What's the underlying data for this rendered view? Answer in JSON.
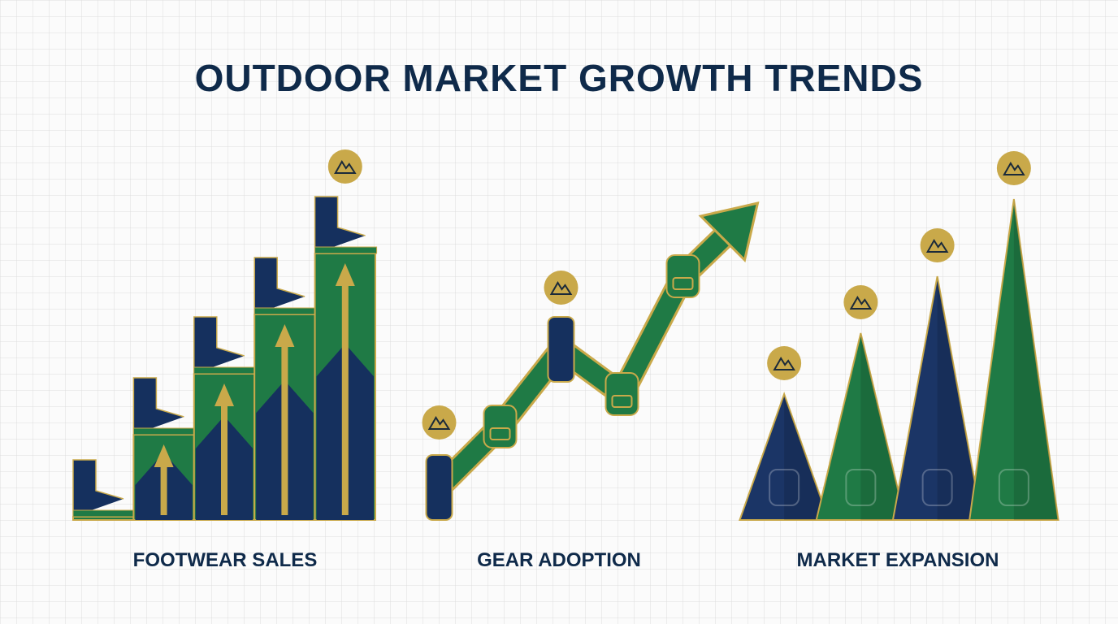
{
  "title": "OUTDOOR MARKET GROWTH TRENDS",
  "chart_data": [
    {
      "type": "bar",
      "title": "FOOTWEAR SALES",
      "values": [
        4,
        105,
        180,
        253,
        328
      ],
      "ylim": [
        0,
        400
      ],
      "color": "#1f7a45"
    },
    {
      "type": "line",
      "title": "GEAR ADOPTION",
      "values": [
        40,
        115,
        210,
        155,
        300
      ],
      "ylim": [
        0,
        400
      ],
      "color": "#1f7a45"
    },
    {
      "type": "triangle",
      "title": "MARKET EXPANSION",
      "values": [
        155,
        230,
        300,
        395
      ],
      "ylim": [
        0,
        400
      ],
      "colors": [
        "#1b3566",
        "#1f7a45",
        "#1b3566",
        "#1f7a45"
      ]
    }
  ]
}
